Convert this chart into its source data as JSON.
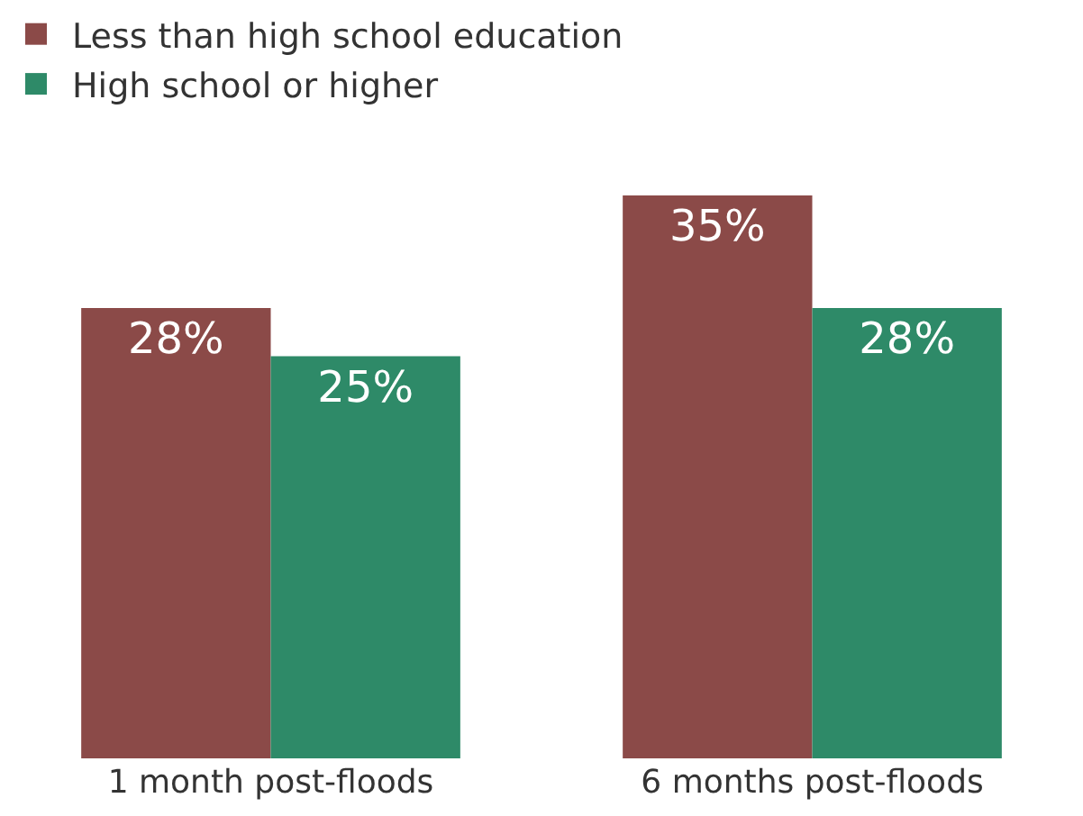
{
  "chart_data": {
    "type": "bar",
    "categories": [
      "1 month post-floods",
      "6 months post-floods"
    ],
    "series": [
      {
        "name": "Less than high school education",
        "color": "#8b4a48",
        "values": [
          28,
          35
        ],
        "value_labels": [
          "28%",
          "35%"
        ]
      },
      {
        "name": "High school or higher",
        "color": "#2e8a68",
        "values": [
          25,
          28
        ],
        "value_labels": [
          "25%",
          "28%"
        ]
      }
    ],
    "legend": "top left",
    "grid": false,
    "tick_labels": "x"
  }
}
